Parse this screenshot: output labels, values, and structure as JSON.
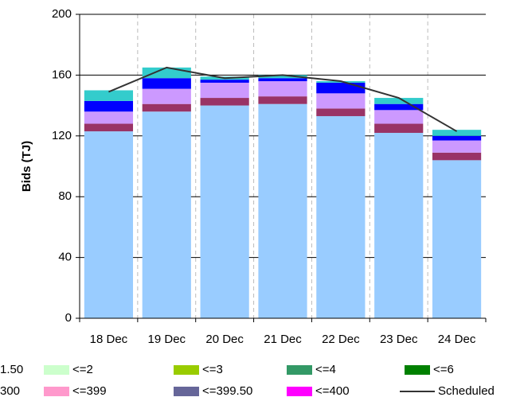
{
  "chart_data": {
    "type": "bar",
    "stacked": true,
    "ylabel": "Bids (TJ)",
    "categories": [
      "18 Dec",
      "19 Dec",
      "20 Dec",
      "21 Dec",
      "22 Dec",
      "23 Dec",
      "24 Dec"
    ],
    "series": [
      {
        "color": "#99ccff",
        "values": [
          123,
          136,
          140,
          141,
          133,
          122,
          104
        ]
      },
      {
        "color": "#993366",
        "values": [
          5,
          5,
          5,
          5,
          5,
          6,
          5
        ]
      },
      {
        "color": "#cc99ff",
        "values": [
          8,
          10,
          10,
          10,
          10,
          9,
          8
        ]
      },
      {
        "color": "#0000ff",
        "values": [
          7,
          7,
          2,
          2,
          7,
          4,
          3
        ]
      },
      {
        "color": "#33cccc",
        "values": [
          7,
          7,
          2,
          2,
          1,
          4,
          4
        ]
      },
      {
        "name": "Scheduled",
        "type": "line",
        "color": "#333333",
        "values": [
          149,
          165,
          158,
          160,
          156,
          145,
          123
        ]
      }
    ],
    "legend": [
      {
        "label": "1.50"
      },
      {
        "label": "<=2",
        "color": "#ccffcc"
      },
      {
        "label": "<=3",
        "color": "#99cc00"
      },
      {
        "label": "<=4",
        "color": "#339966"
      },
      {
        "label": "<=6",
        "color": "#008000"
      },
      {
        "label": "300"
      },
      {
        "label": "<=399",
        "color": "#ff99cc"
      },
      {
        "label": "<=399.50",
        "color": "#666699"
      },
      {
        "label": "<=400",
        "color": "#ff00ff"
      }
    ],
    "ylim": [
      0,
      200
    ],
    "yticks": [
      0,
      40,
      80,
      120,
      160,
      200
    ],
    "grid": true
  }
}
